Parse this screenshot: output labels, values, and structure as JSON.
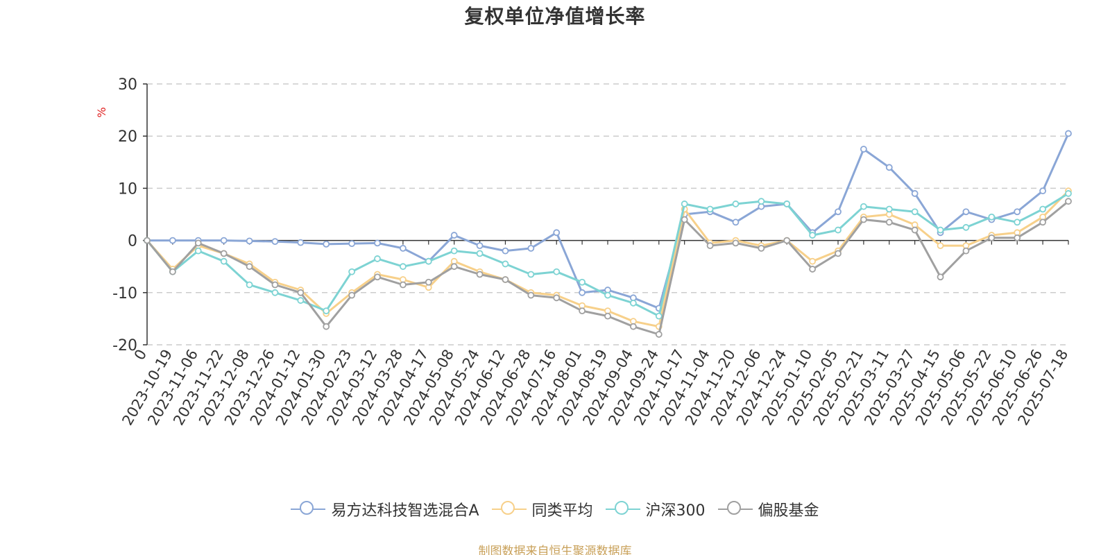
{
  "title": "复权单位净值增长率",
  "source_note": "制图数据来自恒生聚源数据库",
  "chart_data": {
    "type": "line",
    "title": "复权单位净值增长率",
    "ylabel": "%",
    "xlabel": "",
    "ylim": [
      -20,
      30
    ],
    "yticks": [
      -20,
      -10,
      0,
      10,
      20,
      30
    ],
    "grid": true,
    "legend_position": "bottom",
    "x_tick_labels": [
      "0",
      "2023-10-19",
      "2023-11-06",
      "2023-11-22",
      "2023-12-08",
      "2023-12-26",
      "2024-01-12",
      "2024-01-30",
      "2024-02-23",
      "2024-03-12",
      "2024-03-28",
      "2024-04-17",
      "2024-05-08",
      "2024-05-24",
      "2024-06-12",
      "2024-06-28",
      "2024-07-16",
      "2024-08-01",
      "2024-08-19",
      "2024-09-04",
      "2024-09-24",
      "2024-10-17",
      "2024-11-04",
      "2024-11-20",
      "2024-12-06",
      "2024-12-24",
      "2025-01-10",
      "2025-02-05",
      "2025-02-21",
      "2025-03-11",
      "2025-03-27",
      "2025-04-15",
      "2025-05-06",
      "2025-05-22",
      "2025-06-10",
      "2025-06-26",
      "2025-07-18"
    ],
    "series": [
      {
        "name": "易方达科技智选混合A",
        "color": "#8aa6d6",
        "values": [
          0,
          0,
          0,
          0,
          -0.1,
          -0.2,
          -0.4,
          -0.7,
          -0.6,
          -0.5,
          -1.5,
          -4.0,
          1.0,
          -1.0,
          -2.0,
          -1.5,
          1.5,
          -10.0,
          -9.5,
          -11.0,
          -13.0,
          5.0,
          5.5,
          3.5,
          6.5,
          7.0,
          1.5,
          5.5,
          17.5,
          14.0,
          9.0,
          1.5,
          5.5,
          4.0,
          5.5,
          9.5,
          20.5
        ]
      },
      {
        "name": "同类平均",
        "color": "#f7d08a",
        "values": [
          0,
          -5.5,
          -1.0,
          -2.5,
          -4.5,
          -8.0,
          -9.5,
          -14.0,
          -10.0,
          -6.5,
          -7.5,
          -9.0,
          -4.0,
          -6.0,
          -7.5,
          -10.0,
          -10.5,
          -12.5,
          -13.5,
          -15.5,
          -16.5,
          6.0,
          -0.5,
          0.0,
          -1.0,
          0.0,
          -4.0,
          -2.0,
          4.5,
          5.0,
          3.0,
          -1.0,
          -1.0,
          1.0,
          1.5,
          4.5,
          9.5
        ]
      },
      {
        "name": "沪深300",
        "color": "#7dd3d3",
        "values": [
          0,
          -6.0,
          -2.0,
          -4.0,
          -8.5,
          -10.0,
          -11.5,
          -13.5,
          -6.0,
          -3.5,
          -5.0,
          -4.0,
          -2.0,
          -2.5,
          -4.5,
          -6.5,
          -6.0,
          -8.0,
          -10.5,
          -12.0,
          -14.5,
          7.0,
          6.0,
          7.0,
          7.5,
          7.0,
          1.0,
          2.0,
          6.5,
          6.0,
          5.5,
          2.0,
          2.5,
          4.5,
          3.5,
          6.0,
          9.0
        ]
      },
      {
        "name": "偏股基金",
        "color": "#a0a0a0",
        "values": [
          0,
          -6.0,
          -0.5,
          -2.5,
          -5.0,
          -8.5,
          -10.0,
          -16.5,
          -10.5,
          -7.0,
          -8.5,
          -8.0,
          -5.0,
          -6.5,
          -7.5,
          -10.5,
          -11.0,
          -13.5,
          -14.5,
          -16.5,
          -18.0,
          4.0,
          -1.0,
          -0.5,
          -1.5,
          0.0,
          -5.5,
          -2.5,
          4.0,
          3.5,
          2.0,
          -7.0,
          -2.0,
          0.5,
          0.5,
          3.5,
          7.5
        ]
      }
    ]
  }
}
